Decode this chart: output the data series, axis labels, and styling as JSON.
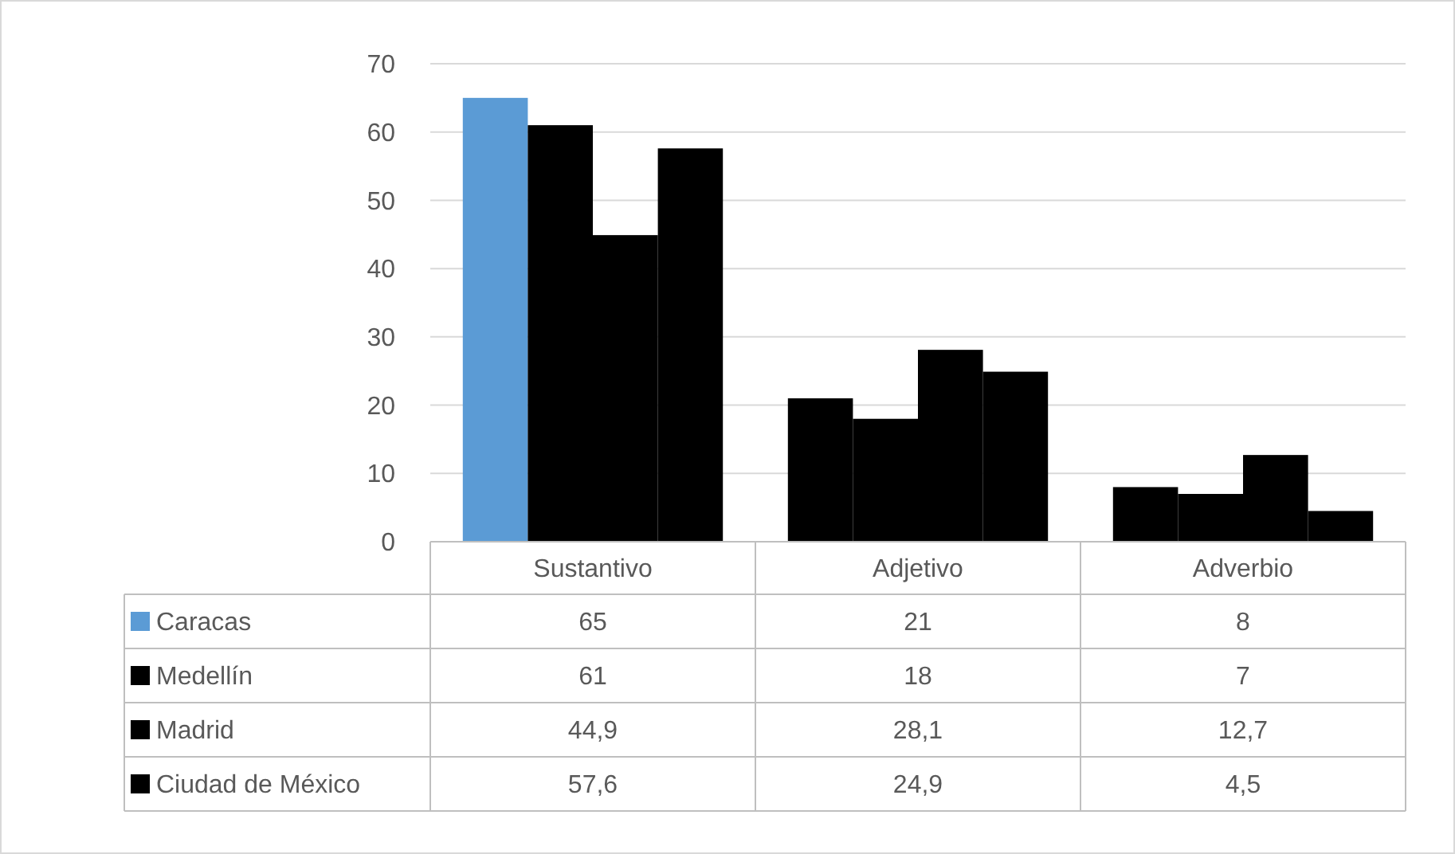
{
  "chart_data": {
    "type": "bar",
    "categories": [
      "Sustantivo",
      "Adjetivo",
      "Adverbio"
    ],
    "ylim": [
      0,
      70
    ],
    "yticks": [
      0,
      10,
      20,
      30,
      40,
      50,
      60,
      70
    ],
    "grid": "y",
    "legend": "bottom",
    "data_labels": true,
    "series": [
      {
        "name": "Caracas",
        "color": "#5b9bd5",
        "colors": [
          "#5b9bd5",
          "#000000",
          "#000000"
        ],
        "values": [
          65,
          21,
          8
        ],
        "value_labels": [
          "65",
          "21",
          "8"
        ]
      },
      {
        "name": "Medellín",
        "color": "#000000",
        "values": [
          61,
          18,
          7
        ],
        "value_labels": [
          "61",
          "18",
          "7"
        ]
      },
      {
        "name": "Madrid",
        "color": "#000000",
        "values": [
          44.9,
          28.1,
          12.7
        ],
        "value_labels": [
          "44,9",
          "28,1",
          "12,7"
        ]
      },
      {
        "name": "Ciudad de México",
        "color": "#000000",
        "values": [
          57.6,
          24.9,
          4.5
        ],
        "value_labels": [
          "57,6",
          "24,9",
          "4,5"
        ]
      }
    ]
  }
}
